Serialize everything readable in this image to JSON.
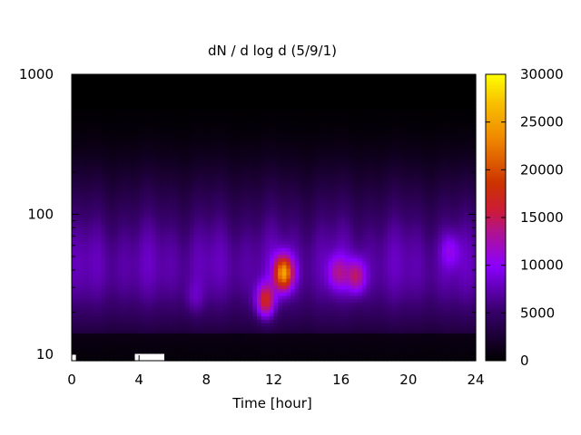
{
  "chart_data": {
    "type": "heatmap",
    "title": "dN / d log d (5/9/1)",
    "xlabel": "Time [hour]",
    "ylabel": "",
    "x_range": [
      0,
      24
    ],
    "x_ticks": [
      "0",
      "4",
      "8",
      "12",
      "16",
      "20",
      "24"
    ],
    "y_scale": "log",
    "y_range": [
      9,
      1000
    ],
    "y_ticks": [
      "10",
      "100",
      "1000"
    ],
    "colorbar": {
      "range": [
        0,
        30000
      ],
      "ticks": [
        "0",
        "5000",
        "10000",
        "15000",
        "20000",
        "25000",
        "30000"
      ],
      "colormap": "black-purple-red-orange-yellow"
    },
    "features": [
      {
        "t": 12.6,
        "d": 38,
        "peak": 25000
      },
      {
        "t": 11.5,
        "d": 24,
        "peak": 18000
      },
      {
        "t": 16.9,
        "d": 36,
        "peak": 15000
      },
      {
        "t": 15.8,
        "d": 38,
        "peak": 13000
      },
      {
        "t": 7.3,
        "d": 25,
        "peak": 9000
      },
      {
        "t": 22.5,
        "d": 55,
        "peak": 10500
      }
    ]
  }
}
